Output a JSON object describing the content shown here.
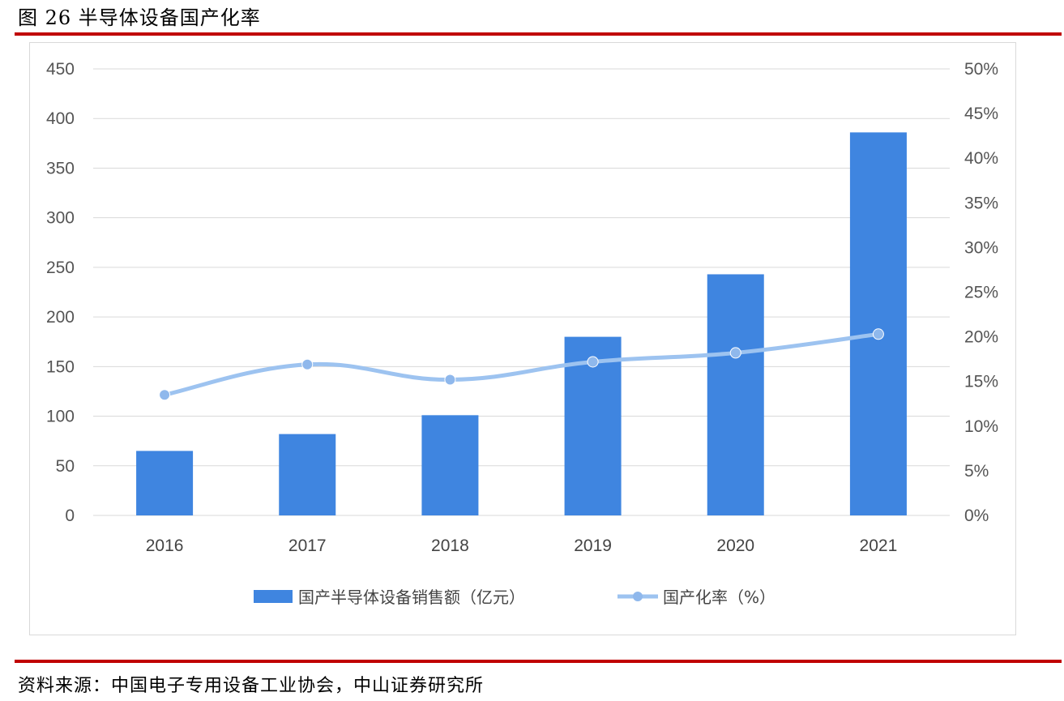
{
  "header": {
    "title": "图 26 半导体设备国产化率"
  },
  "footer": {
    "source": "资料来源：中国电子专用设备工业协会，中山证券研究所"
  },
  "colors": {
    "bar": "#3F85E0",
    "line": "#9DC3F0",
    "marker": "#8FB8EC",
    "rule": "#C00000",
    "grid": "#D9D9D9"
  },
  "chart_data": {
    "type": "bar",
    "categories": [
      "2016",
      "2017",
      "2018",
      "2019",
      "2020",
      "2021"
    ],
    "y_left": {
      "ylim": [
        0,
        450
      ],
      "ticks": [
        "0",
        "50",
        "100",
        "150",
        "200",
        "250",
        "300",
        "350",
        "400",
        "450"
      ]
    },
    "y_right": {
      "ylim": [
        0,
        50
      ],
      "ticks": [
        "0%",
        "5%",
        "10%",
        "15%",
        "20%",
        "25%",
        "30%",
        "35%",
        "40%",
        "45%",
        "50%"
      ]
    },
    "series": [
      {
        "name": "国产半导体设备销售额（亿元）",
        "type": "bar",
        "axis": "left",
        "values": [
          65,
          82,
          101,
          180,
          243,
          386
        ]
      },
      {
        "name": "国产化率（%）",
        "type": "line",
        "axis": "right",
        "values": [
          13.5,
          16.9,
          15.2,
          17.2,
          18.2,
          20.3
        ]
      }
    ],
    "legend_position": "bottom",
    "grid": true
  }
}
